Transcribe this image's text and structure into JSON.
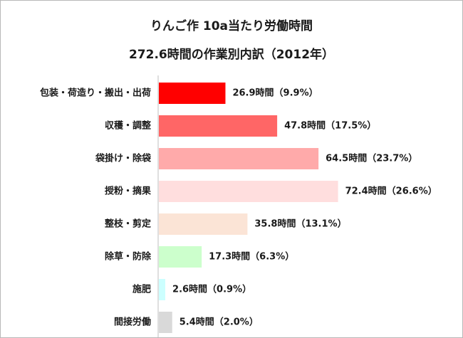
{
  "chart_data": {
    "type": "bar",
    "orientation": "horizontal",
    "title": "りんご作 10a当たり労働時間",
    "subtitle": "272.6時間の作業別内訳（2012年）",
    "xlim": [
      0,
      80
    ],
    "grid": false,
    "categories": [
      "包装・荷造り・搬出・出荷",
      "収穫・調整",
      "袋掛け・除袋",
      "授粉・摘果",
      "整枝・剪定",
      "除草・防除",
      "施肥",
      "間接労働"
    ],
    "values": [
      26.9,
      47.8,
      64.5,
      72.4,
      35.8,
      17.3,
      2.6,
      5.4
    ],
    "data_labels": [
      "26.9時間（9.9%）",
      "47.8時間（17.5%）",
      "64.5時間（23.7%）",
      "72.4時間（26.6%）",
      "35.8時間（13.1%）",
      "17.3時間（6.3%）",
      "2.6時間（0.9%）",
      "5.4時間（2.0%）"
    ],
    "colors": [
      "#ff0000",
      "#ff6666",
      "#ffaaaa",
      "#ffdede",
      "#fbe4d6",
      "#ccffcc",
      "#ccffff",
      "#d9d9d9"
    ]
  }
}
